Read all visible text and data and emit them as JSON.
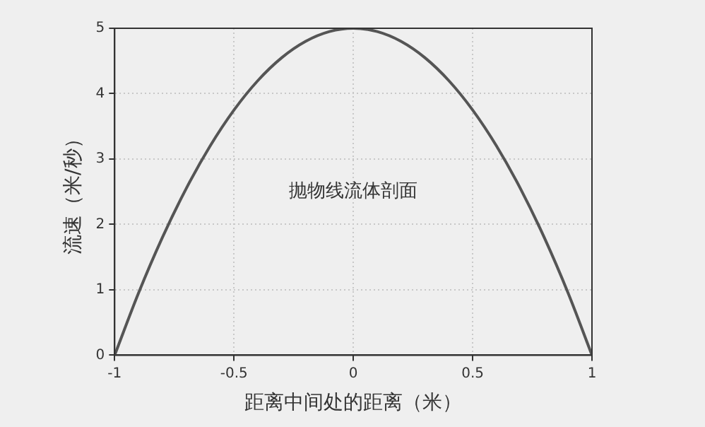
{
  "chart_data": {
    "type": "line",
    "xlabel": "距离中间处的距离（米）",
    "ylabel": "流速（米/秒）",
    "annotations": [
      "抛物线流体剖面"
    ],
    "x": [
      -1,
      -0.9,
      -0.8,
      -0.7,
      -0.6,
      -0.5,
      -0.4,
      -0.3,
      -0.2,
      -0.1,
      0,
      0.1,
      0.2,
      0.3,
      0.4,
      0.5,
      0.6,
      0.7,
      0.8,
      0.9,
      1
    ],
    "series": [
      {
        "color": "#555555",
        "values": [
          0,
          0.95,
          1.8,
          2.55,
          3.2,
          3.75,
          4.2,
          4.55,
          4.8,
          4.95,
          5,
          4.95,
          4.8,
          4.55,
          4.2,
          3.75,
          3.2,
          2.55,
          1.8,
          0.95,
          0
        ]
      }
    ],
    "xlim": [
      -1,
      1
    ],
    "xticks": [
      -1,
      -0.5,
      0,
      0.5,
      1
    ],
    "ylim": [
      0,
      5
    ],
    "yticks": [
      0,
      1,
      2,
      3,
      4,
      5
    ],
    "grid": true,
    "legend": false,
    "marker": "none",
    "line_style": "solid"
  }
}
